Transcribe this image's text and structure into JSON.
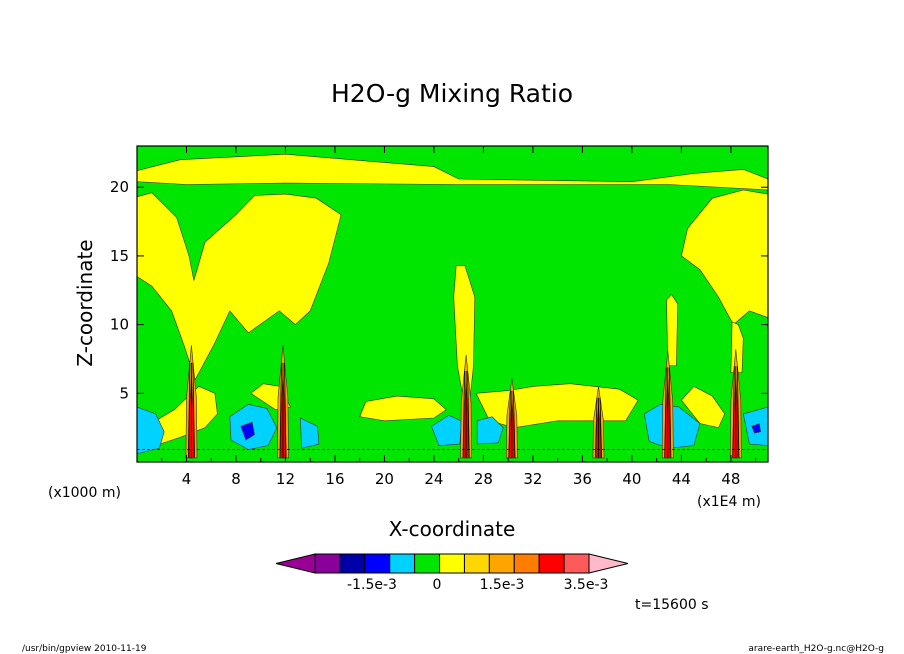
{
  "chart_data": {
    "type": "contour",
    "title": "H2O-g Mixing Ratio",
    "xlabel": "X-coordinate",
    "ylabel": "Z-coordinate",
    "xunit": "(x1E4 m)",
    "yunit": "(x1000 m)",
    "xlim": [
      0,
      51
    ],
    "ylim": [
      0,
      23
    ],
    "xticks": [
      "4",
      "8",
      "12",
      "16",
      "20",
      "24",
      "28",
      "32",
      "36",
      "40",
      "44",
      "48"
    ],
    "yticks": [
      "5",
      "10",
      "15",
      "20"
    ],
    "colorbar": {
      "colors": [
        "#9b0096",
        "#8a009a",
        "#0000a8",
        "#0000ff",
        "#00d2ff",
        "#00e600",
        "#ffff00",
        "#ffd700",
        "#ffa500",
        "#ff7d00",
        "#ff0000",
        "#ff5a5a",
        "#ffb9c8"
      ],
      "labels": [
        "-1.5e-3",
        "0",
        "1.5e-3",
        "3.5e-3"
      ]
    },
    "time_label": "t=15600 s",
    "program_label": "/usr/bin/gpview  2010-11-19",
    "file_label": "arare-earth_H2O-g.nc@H2O-g",
    "background_color": "#00e600"
  }
}
